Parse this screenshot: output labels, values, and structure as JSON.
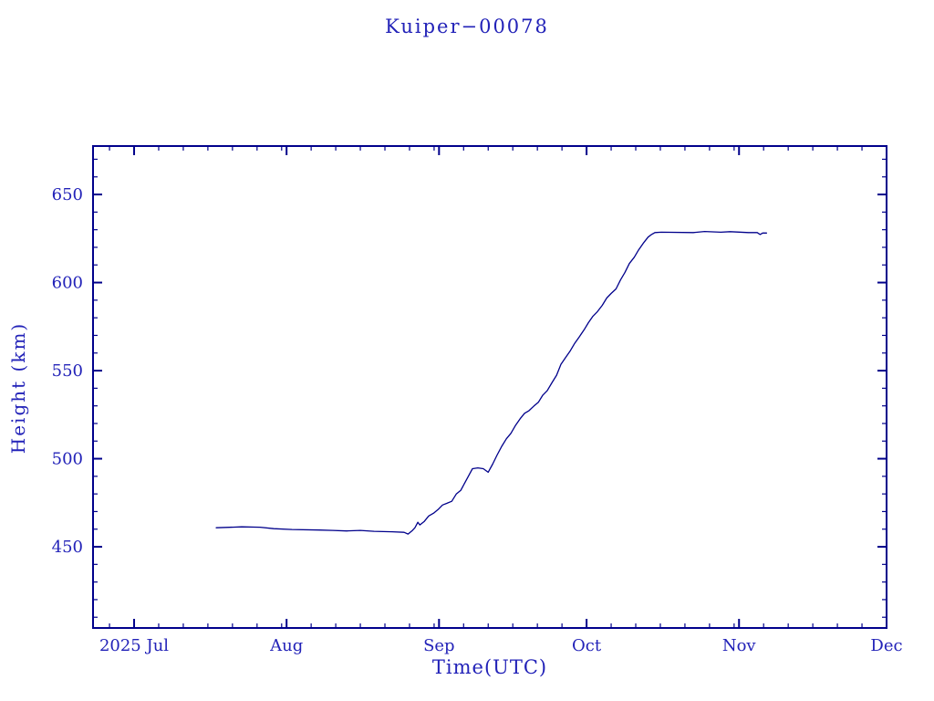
{
  "chart_data": {
    "type": "line",
    "title": "Kuiper−00078",
    "xlabel": "Time(UTC)",
    "ylabel": "Height (km)",
    "x_unit": "days since 2025-07-01 00:00 UTC",
    "xlim": [
      -8.35,
      153
    ],
    "ylim": [
      403.9,
      677.5
    ],
    "grid": false,
    "legend": "none",
    "colors": {
      "line": "#00008b",
      "axis": "#00008b",
      "text": "#2222b8",
      "background": "#ffffff"
    },
    "x_major_ticks": [
      {
        "day": 0,
        "label": "2025 Jul"
      },
      {
        "day": 31,
        "label": "Aug"
      },
      {
        "day": 62,
        "label": "Sep"
      },
      {
        "day": 92,
        "label": "Oct"
      },
      {
        "day": 123,
        "label": "Nov"
      },
      {
        "day": 153,
        "label": "Dec"
      }
    ],
    "x_minor_ticks": [
      -5,
      5,
      10,
      15,
      20,
      25,
      30,
      36,
      41,
      46,
      51,
      56,
      61,
      67,
      72,
      77,
      82,
      87,
      97,
      102,
      107,
      112,
      117,
      122,
      128,
      133,
      138,
      143,
      148
    ],
    "y_major_ticks": [
      450,
      500,
      550,
      600,
      650
    ],
    "y_minor_ticks": [
      410,
      420,
      430,
      440,
      460,
      470,
      480,
      490,
      510,
      520,
      530,
      540,
      560,
      570,
      580,
      590,
      610,
      620,
      630,
      640,
      660,
      670
    ],
    "series": [
      {
        "name": "Kuiper-00078 height",
        "points": [
          [
            16.7,
            460.8
          ],
          [
            21.9,
            461.3
          ],
          [
            25.6,
            461.1
          ],
          [
            28.4,
            460.3
          ],
          [
            32.1,
            459.8
          ],
          [
            37.7,
            459.5
          ],
          [
            40.4,
            459.3
          ],
          [
            43.2,
            459.0
          ],
          [
            46.0,
            459.3
          ],
          [
            48.8,
            458.8
          ],
          [
            52.5,
            458.5
          ],
          [
            54.9,
            458.2
          ],
          [
            55.7,
            457.2
          ],
          [
            56.6,
            459.3
          ],
          [
            57.1,
            460.8
          ],
          [
            57.7,
            463.9
          ],
          [
            58.1,
            462.4
          ],
          [
            59.0,
            464.4
          ],
          [
            59.9,
            467.5
          ],
          [
            60.9,
            469.1
          ],
          [
            61.8,
            471.1
          ],
          [
            62.7,
            473.7
          ],
          [
            63.6,
            474.7
          ],
          [
            64.6,
            475.8
          ],
          [
            65.5,
            479.9
          ],
          [
            66.4,
            482.0
          ],
          [
            67.3,
            486.6
          ],
          [
            68.3,
            491.8
          ],
          [
            68.8,
            494.3
          ],
          [
            69.9,
            494.8
          ],
          [
            71.0,
            494.3
          ],
          [
            72.0,
            492.3
          ],
          [
            72.9,
            496.9
          ],
          [
            73.8,
            502.1
          ],
          [
            74.8,
            507.2
          ],
          [
            75.7,
            511.3
          ],
          [
            76.6,
            514.4
          ],
          [
            77.6,
            519.1
          ],
          [
            78.5,
            522.7
          ],
          [
            79.4,
            525.8
          ],
          [
            80.3,
            527.3
          ],
          [
            81.3,
            529.9
          ],
          [
            82.2,
            532.0
          ],
          [
            83.1,
            536.1
          ],
          [
            84.0,
            538.7
          ],
          [
            85.0,
            543.3
          ],
          [
            85.9,
            547.4
          ],
          [
            86.8,
            553.6
          ],
          [
            87.8,
            557.7
          ],
          [
            88.7,
            561.3
          ],
          [
            89.6,
            565.5
          ],
          [
            90.5,
            569.1
          ],
          [
            91.5,
            573.2
          ],
          [
            92.4,
            577.3
          ],
          [
            93.3,
            580.9
          ],
          [
            94.2,
            583.5
          ],
          [
            95.2,
            587.1
          ],
          [
            96.1,
            591.2
          ],
          [
            97.0,
            593.8
          ],
          [
            98.0,
            596.4
          ],
          [
            98.9,
            601.5
          ],
          [
            99.8,
            605.7
          ],
          [
            100.7,
            610.8
          ],
          [
            101.7,
            614.4
          ],
          [
            102.6,
            618.6
          ],
          [
            103.5,
            622.2
          ],
          [
            104.5,
            625.8
          ],
          [
            105.2,
            627.3
          ],
          [
            105.9,
            628.4
          ],
          [
            107.2,
            628.6
          ],
          [
            113.7,
            628.4
          ],
          [
            116.0,
            629.0
          ],
          [
            119.3,
            628.6
          ],
          [
            121.2,
            628.9
          ],
          [
            124.9,
            628.4
          ],
          [
            126.7,
            628.4
          ],
          [
            127.3,
            627.3
          ],
          [
            127.8,
            628.1
          ],
          [
            128.6,
            628.1
          ]
        ]
      }
    ]
  }
}
